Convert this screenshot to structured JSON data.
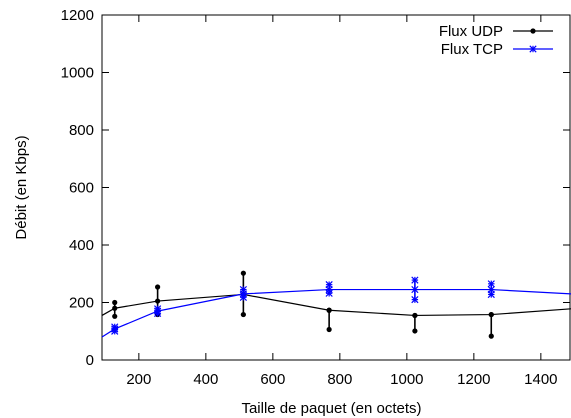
{
  "chart_data": {
    "type": "line",
    "xlabel": "Taille de paquet (en octets)",
    "ylabel": "Débit (en Kbps)",
    "xlim": [
      90,
      1490
    ],
    "ylim": [
      0,
      1200
    ],
    "xticks": [
      200,
      400,
      600,
      800,
      1000,
      1200,
      1400
    ],
    "yticks": [
      0,
      200,
      400,
      600,
      800,
      1000,
      1200
    ],
    "legend_position": "top-right",
    "series": [
      {
        "name": "Flux UDP",
        "color": "#000000",
        "marker": "dot",
        "x": [
          90,
          128,
          256,
          512,
          768,
          1024,
          1252,
          1490
        ],
        "y": [
          155,
          180,
          205,
          228,
          173,
          155,
          158,
          178
        ],
        "errors": [
          {
            "x": 128,
            "lo": 152,
            "hi": 200
          },
          {
            "x": 256,
            "lo": 158,
            "hi": 254
          },
          {
            "x": 512,
            "lo": 158,
            "hi": 302
          },
          {
            "x": 768,
            "lo": 106,
            "hi": 173
          },
          {
            "x": 1024,
            "lo": 101,
            "hi": 155
          },
          {
            "x": 1252,
            "lo": 83,
            "hi": 158
          }
        ]
      },
      {
        "name": "Flux TCP",
        "color": "#0000ff",
        "marker": "star",
        "x": [
          90,
          128,
          256,
          512,
          768,
          1024,
          1252,
          1490
        ],
        "y": [
          80,
          108,
          170,
          230,
          245,
          245,
          245,
          230
        ],
        "errors": [
          {
            "x": 128,
            "lo": 100,
            "hi": 115
          },
          {
            "x": 256,
            "lo": 162,
            "hi": 178
          },
          {
            "x": 512,
            "lo": 218,
            "hi": 245
          },
          {
            "x": 768,
            "lo": 232,
            "hi": 262
          },
          {
            "x": 1024,
            "lo": 210,
            "hi": 278
          },
          {
            "x": 1252,
            "lo": 228,
            "hi": 265
          }
        ]
      }
    ]
  }
}
